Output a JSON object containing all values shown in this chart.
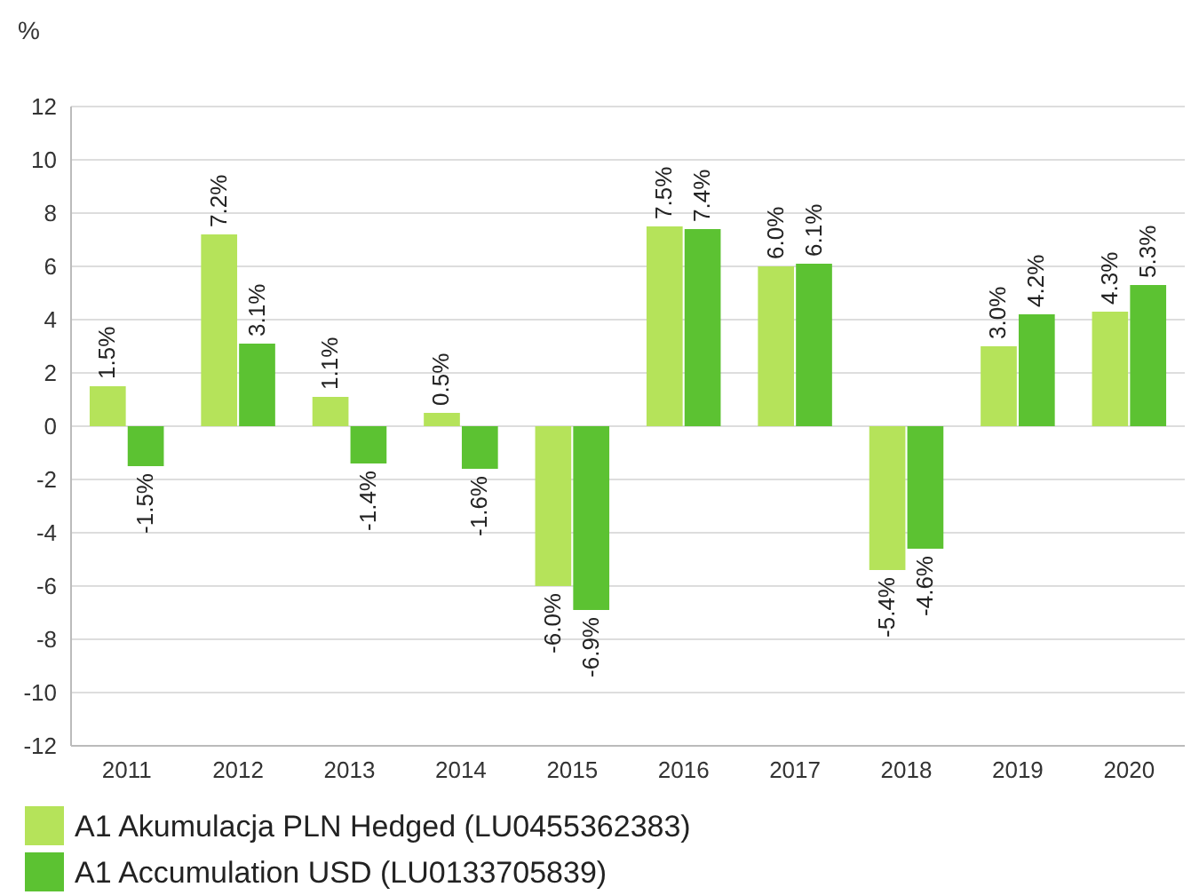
{
  "chart_data": {
    "type": "bar",
    "ylabel": "%",
    "categories": [
      "2011",
      "2012",
      "2013",
      "2014",
      "2015",
      "2016",
      "2017",
      "2018",
      "2019",
      "2020"
    ],
    "series": [
      {
        "name": "A1 Akumulacja PLN Hedged (LU0455362383)",
        "color": "#b5e35a",
        "values": [
          1.5,
          7.2,
          1.1,
          0.5,
          -6.0,
          7.5,
          6.0,
          -5.4,
          3.0,
          4.3
        ],
        "value_labels": [
          "1.5%",
          "7.2%",
          "1.1%",
          "0.5%",
          "-6.0%",
          "7.5%",
          "6.0%",
          "-5.4%",
          "3.0%",
          "4.3%"
        ]
      },
      {
        "name": "A1 Accumulation USD (LU0133705839)",
        "color": "#5cc232",
        "values": [
          -1.5,
          3.1,
          -1.4,
          -1.6,
          -6.9,
          7.4,
          6.1,
          -4.6,
          4.2,
          5.3
        ],
        "value_labels": [
          "-1.5%",
          "3.1%",
          "-1.4%",
          "-1.6%",
          "-6.9%",
          "7.4%",
          "6.1%",
          "-4.6%",
          "4.2%",
          "5.3%"
        ]
      }
    ],
    "ylim": [
      -12,
      12
    ],
    "yticks": [
      -12,
      -10,
      -8,
      -6,
      -4,
      -2,
      0,
      2,
      4,
      6,
      8,
      10,
      12
    ],
    "grid": "y",
    "legend": "bottom"
  }
}
